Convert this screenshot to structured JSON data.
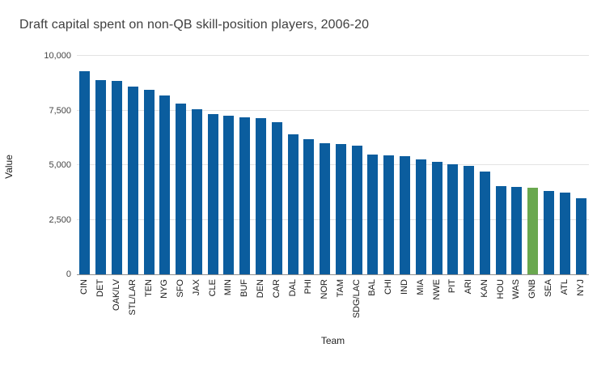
{
  "chart_data": {
    "type": "bar",
    "title": "Draft capital spent on non-QB skill-position players, 2006-20",
    "xlabel": "Team",
    "ylabel": "Value",
    "ylim": [
      0,
      10000
    ],
    "yticks": [
      0,
      2500,
      5000,
      7500,
      10000
    ],
    "ytick_labels": [
      "0",
      "2,500",
      "5,000",
      "7,500",
      "10,000"
    ],
    "grid": true,
    "legend": "none",
    "bar_color": "#0b5d9e",
    "highlight_category": "GNB",
    "highlight_color": "#6aa84f",
    "categories": [
      "CIN",
      "DET",
      "OAK/LV",
      "STL/LAR",
      "TEN",
      "NYG",
      "SFO",
      "JAX",
      "CLE",
      "MIN",
      "BUF",
      "DEN",
      "CAR",
      "DAL",
      "PHI",
      "NOR",
      "TAM",
      "SDG/LAC",
      "BAL",
      "CHI",
      "IND",
      "MIA",
      "NWE",
      "PIT",
      "ARI",
      "KAN",
      "HOU",
      "WAS",
      "GNB",
      "SEA",
      "ATL",
      "NYJ"
    ],
    "values": [
      9300,
      8900,
      8850,
      8600,
      8450,
      8200,
      7800,
      7550,
      7350,
      7250,
      7200,
      7150,
      6950,
      6400,
      6200,
      6000,
      5950,
      5900,
      5500,
      5450,
      5400,
      5250,
      5150,
      5050,
      4950,
      4700,
      4050,
      4000,
      3950,
      3800,
      3750,
      3500
    ]
  }
}
